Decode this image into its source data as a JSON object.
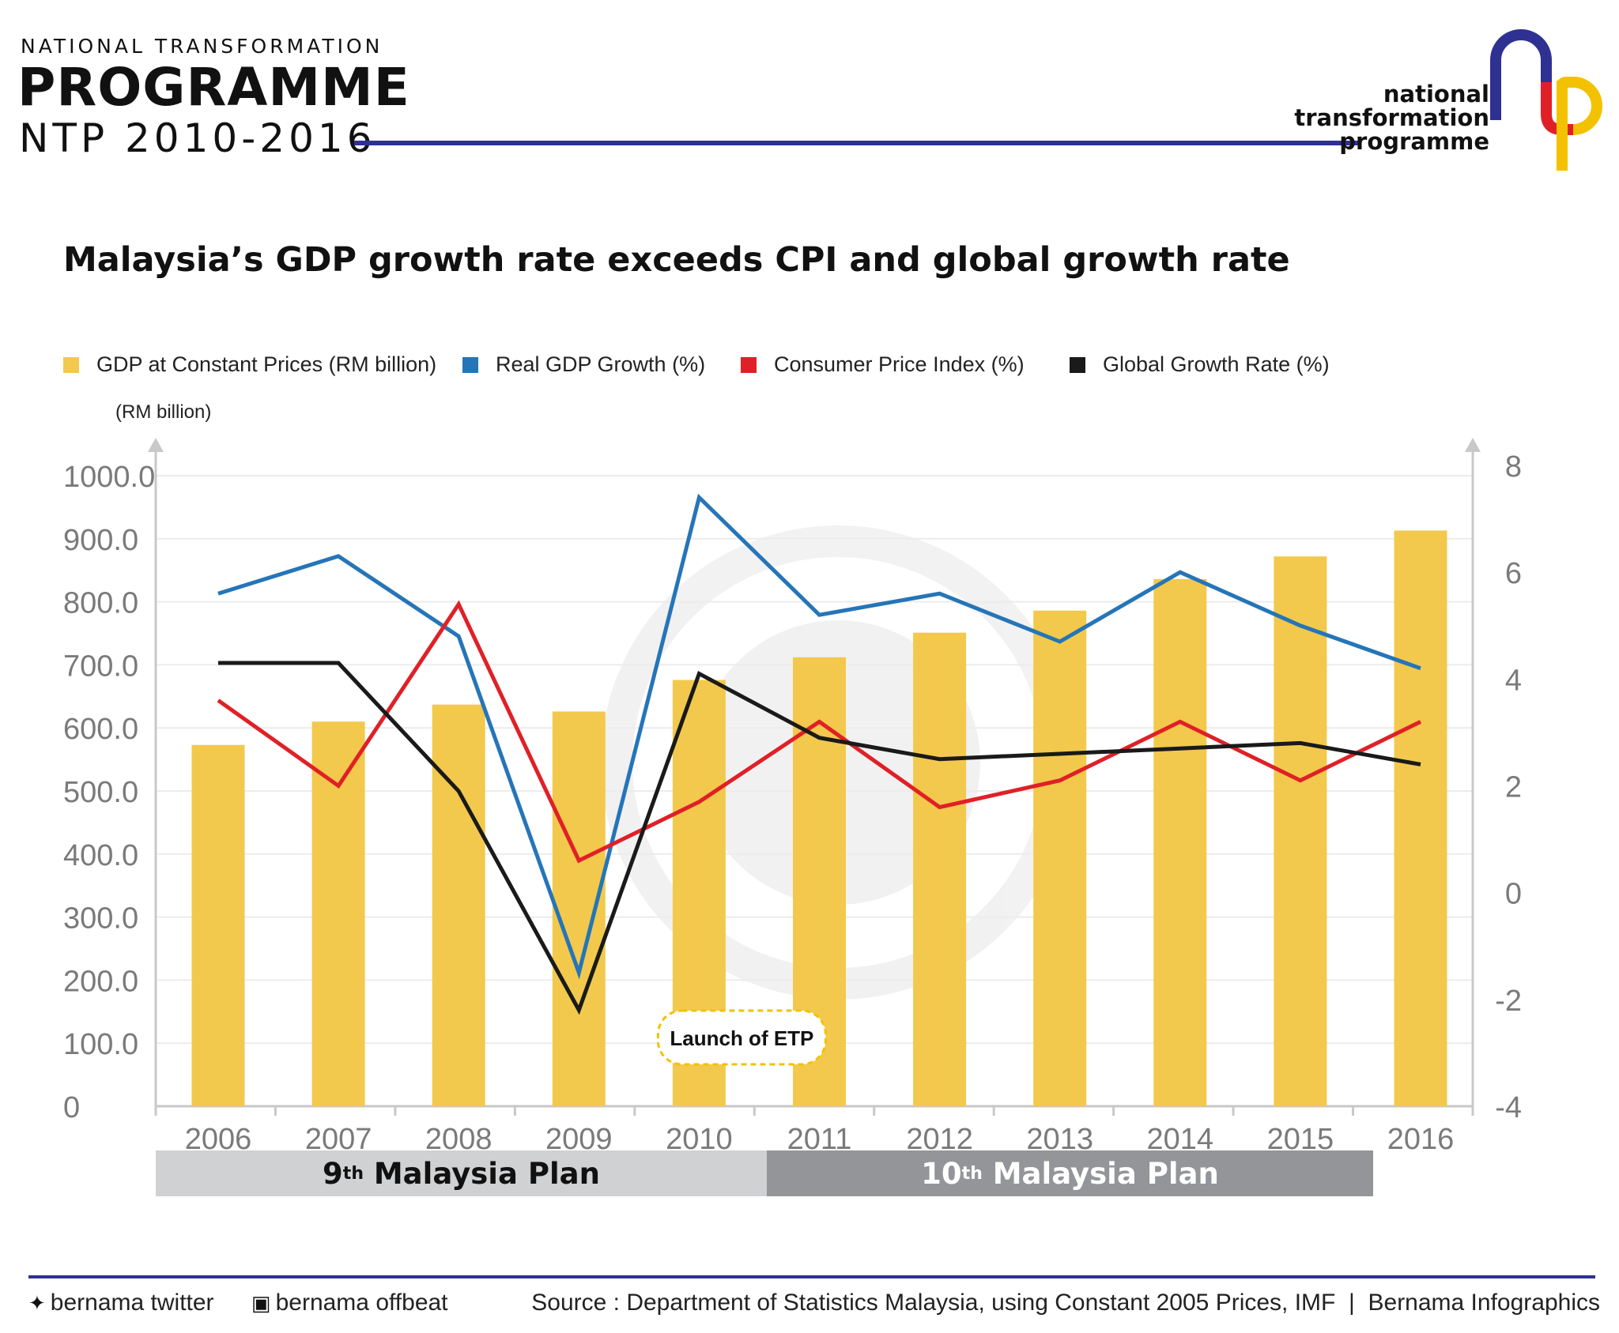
{
  "header": {
    "top_line": "NATIONAL TRANSFORMATION",
    "main_line": "PROGRAMME",
    "sub_line": "NTP 2010-2016",
    "logo_text": [
      "national",
      "transformation",
      "programme"
    ],
    "logo_letters": "ntp",
    "accent_color": "#2e3192"
  },
  "chart_title": "Malaysia’s GDP growth rate exceeds CPI and global growth rate",
  "legend": [
    {
      "label": "GDP at Constant Prices (RM billion)",
      "color": "#f2c94c"
    },
    {
      "label": "Real GDP Growth (%)",
      "color": "#2575b8"
    },
    {
      "label": "Consumer Price Index (%)",
      "color": "#e02027"
    },
    {
      "label": "Global Growth Rate (%)",
      "color": "#1a1a1a"
    }
  ],
  "unit_label": "(RM billion)",
  "chart_data": {
    "type": "bar",
    "title": "Malaysia’s GDP growth rate exceeds CPI and global growth rate",
    "categories": [
      "2006",
      "2007",
      "2008",
      "2009",
      "2010",
      "2011",
      "2012",
      "2013",
      "2014",
      "2015",
      "2016"
    ],
    "left_axis": {
      "label": "(RM billion)",
      "ticks": [
        "1000.0",
        "900.0",
        "800.0",
        "700.0",
        "600.0",
        "500.0",
        "400.0",
        "300.0",
        "200.0",
        "100.0",
        "0"
      ]
    },
    "right_axis": {
      "ticks": [
        "8",
        "6",
        "4",
        "2",
        "0",
        "-2",
        "-4"
      ]
    },
    "bars": {
      "name": "GDP at Constant Prices (RM billion)",
      "color": "#f2c94c",
      "values": [
        573,
        610,
        637,
        626,
        676,
        712,
        751,
        786,
        836,
        872,
        913
      ]
    },
    "series": [
      {
        "name": "Real GDP Growth (%)",
        "color": "#2575b8",
        "values": [
          5.6,
          6.3,
          4.8,
          -1.5,
          7.4,
          5.2,
          5.6,
          4.7,
          6.0,
          5.0,
          4.2
        ]
      },
      {
        "name": "Consumer Price Index (%)",
        "color": "#e02027",
        "values": [
          3.6,
          2.0,
          5.4,
          0.6,
          1.7,
          3.2,
          1.6,
          2.1,
          3.2,
          2.1,
          3.2
        ]
      },
      {
        "name": "Global Growth Rate (%)",
        "color": "#1a1a1a",
        "values": [
          4.3,
          4.3,
          1.9,
          -2.2,
          4.1,
          2.9,
          2.5,
          2.6,
          2.7,
          2.8,
          2.4
        ]
      }
    ],
    "annotation": {
      "text": "Launch of ETP",
      "category": "2010"
    },
    "grid": true
  },
  "plans": {
    "ninth_num": "9",
    "ninth_sup": "th",
    "ninth_text": " Malaysia Plan",
    "tenth_num": "10",
    "tenth_sup": "th",
    "tenth_text": " Malaysia Plan"
  },
  "footer": {
    "twitter": "bernama twitter",
    "offbeat": "bernama offbeat",
    "source": "Source : Department of Statistics Malaysia, using Constant 2005 Prices, IMF  |  Bernama Infographics"
  }
}
